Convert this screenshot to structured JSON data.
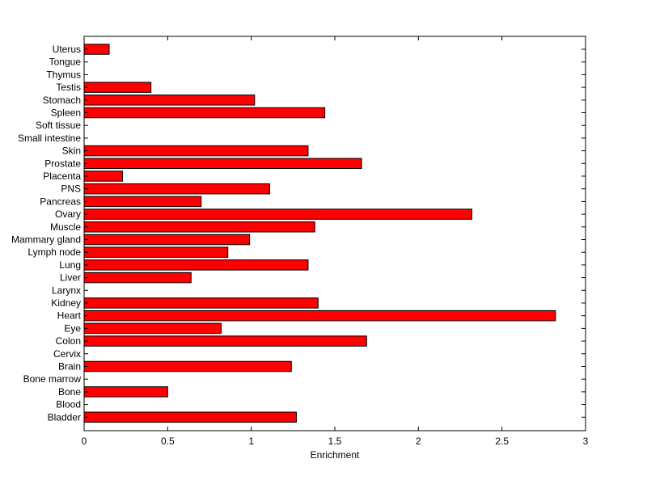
{
  "chart_data": {
    "type": "bar",
    "orientation": "horizontal",
    "title": "",
    "xlabel": "Enrichment",
    "ylabel": "",
    "xlim": [
      0,
      3
    ],
    "xticks": [
      "0",
      "0.5",
      "1",
      "1.5",
      "2",
      "2.5",
      "3"
    ],
    "grid": false,
    "bar_color": "#ff0000",
    "edge_color": "#000000",
    "categories": [
      "Uterus",
      "Tongue",
      "Thymus",
      "Testis",
      "Stomach",
      "Spleen",
      "Soft tissue",
      "Small intestine",
      "Skin",
      "Prostate",
      "Placenta",
      "PNS",
      "Pancreas",
      "Ovary",
      "Muscle",
      "Mammary gland",
      "Lymph node",
      "Lung",
      "Liver",
      "Larynx",
      "Kidney",
      "Heart",
      "Eye",
      "Colon",
      "Cervix",
      "Brain",
      "Bone marrow",
      "Bone",
      "Blood",
      "Bladder"
    ],
    "values": [
      0.15,
      0,
      0,
      0.4,
      1.02,
      1.44,
      0,
      0,
      1.34,
      1.66,
      0.23,
      1.11,
      0.7,
      2.32,
      1.38,
      0.99,
      0.86,
      1.34,
      0.64,
      0,
      1.4,
      2.82,
      0.82,
      1.69,
      0,
      1.24,
      0,
      0.5,
      0,
      1.27
    ]
  }
}
